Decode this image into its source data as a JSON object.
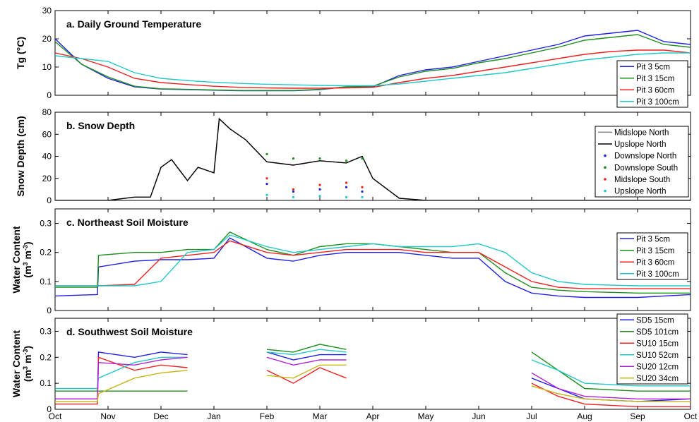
{
  "chart_data": [
    {
      "type": "line",
      "title": "a. Daily Ground Temperature",
      "ylabel": "Tg (°C)",
      "ylim": [
        0,
        30
      ],
      "yticks": [
        "0",
        "10",
        "20",
        "30"
      ],
      "xticks": [
        "Oct",
        "Nov",
        "Dec",
        "Jan",
        "Feb",
        "Mar",
        "Apr",
        "May",
        "Jun",
        "Jul",
        "Aug",
        "Sep",
        "Oct"
      ],
      "legend_position": "bottom-right",
      "x": [
        0,
        0.5,
        1,
        1.5,
        2,
        2.5,
        3,
        3.5,
        4,
        4.5,
        5,
        5.5,
        6,
        6.5,
        7,
        7.5,
        8,
        8.5,
        9,
        9.5,
        10,
        10.5,
        11,
        11.5,
        12
      ],
      "series": [
        {
          "name": "Pit 3 5cm",
          "color": "#1f1fe6",
          "values": [
            20,
            11,
            6,
            3,
            2.2,
            2,
            1.8,
            1.6,
            1.6,
            1.6,
            2,
            3,
            3,
            7,
            9,
            10,
            12,
            14,
            16,
            18,
            21,
            22,
            23,
            19,
            18
          ]
        },
        {
          "name": "Pit 3 15cm",
          "color": "#1e8f1e",
          "values": [
            19,
            11,
            6.5,
            3.2,
            2.3,
            2.1,
            1.9,
            1.7,
            1.7,
            1.7,
            2.1,
            3,
            3.2,
            6.5,
            8.5,
            9.5,
            11.5,
            13,
            15,
            17,
            19.5,
            20.5,
            21.5,
            18,
            17
          ]
        },
        {
          "name": "Pit 3 60cm",
          "color": "#ee2020",
          "values": [
            15,
            13,
            10,
            6,
            4.5,
            3.8,
            3.2,
            2.8,
            2.6,
            2.5,
            2.5,
            2.6,
            2.8,
            4.5,
            6,
            7,
            8.5,
            10,
            11.5,
            13,
            14.5,
            15.5,
            16,
            16,
            15
          ]
        },
        {
          "name": "Pit 3 100cm",
          "color": "#20c8c8",
          "values": [
            14,
            13,
            12,
            8,
            6,
            5.2,
            4.6,
            4.2,
            3.9,
            3.7,
            3.5,
            3.4,
            3.4,
            4,
            5,
            6,
            7,
            8,
            9.5,
            11,
            12.5,
            13.5,
            14.5,
            15,
            15
          ]
        }
      ]
    },
    {
      "type": "line",
      "title": "b. Snow Depth",
      "ylabel": "Snow Depth (cm)",
      "ylim": [
        0,
        80
      ],
      "yticks": [
        "0",
        "20",
        "40",
        "60",
        "80"
      ],
      "xticks": [
        "Oct",
        "Nov",
        "Dec",
        "Jan",
        "Feb",
        "Mar",
        "Apr",
        "May",
        "Jun",
        "Jul",
        "Aug",
        "Sep",
        "Oct"
      ],
      "legend_position": "top-right",
      "x": [
        0,
        1,
        1.5,
        1.8,
        2,
        2.2,
        2.5,
        2.7,
        3,
        3.1,
        3.3,
        3.6,
        4,
        4.5,
        5,
        5.5,
        5.8,
        6,
        6.5,
        7,
        7.5,
        8,
        12
      ],
      "series": [
        {
          "name": "Midslope North",
          "color": "#8c8c8c",
          "values": [
            0,
            0,
            3,
            3,
            30,
            37,
            18,
            30,
            25,
            74,
            65,
            55,
            35,
            32,
            36,
            34,
            40,
            20,
            2,
            0,
            0,
            0,
            0
          ]
        },
        {
          "name": "Upslope North",
          "color": "#000000",
          "values": [
            0,
            0,
            3,
            3,
            30,
            37,
            18,
            30,
            25,
            74,
            65,
            55,
            35,
            32,
            36,
            34,
            40,
            20,
            2,
            0,
            0,
            0,
            0
          ]
        },
        {
          "name": "Downslope North",
          "color": "#1f1fe6",
          "values": [
            null,
            null,
            null,
            null,
            null,
            null,
            null,
            null,
            null,
            null,
            null,
            null,
            15,
            8,
            10,
            12,
            8,
            null,
            null,
            null,
            null,
            null,
            null
          ]
        },
        {
          "name": "Downslope South",
          "color": "#1e8f1e",
          "values": [
            null,
            null,
            null,
            null,
            null,
            null,
            null,
            null,
            null,
            null,
            null,
            null,
            42,
            38,
            38,
            36,
            38,
            null,
            null,
            null,
            null,
            null,
            null
          ]
        },
        {
          "name": "Midslope South",
          "color": "#ee2020",
          "values": [
            null,
            null,
            null,
            null,
            null,
            null,
            null,
            null,
            null,
            null,
            null,
            null,
            20,
            10,
            14,
            16,
            12,
            null,
            null,
            null,
            null,
            null,
            null
          ]
        },
        {
          "name": "Upslope North",
          "color": "#20c8c8",
          "values": [
            null,
            null,
            null,
            null,
            null,
            null,
            null,
            null,
            null,
            null,
            null,
            null,
            5,
            3,
            4,
            3,
            3,
            null,
            null,
            null,
            null,
            null,
            null
          ]
        }
      ]
    },
    {
      "type": "line",
      "title": "c. Northeast Soil Moisture",
      "ylabel": "Water Content",
      "ylabel2_base": "(m",
      "ylabel2_exp1": "3",
      "ylabel2_mid": " m",
      "ylabel2_exp2": "-3",
      "ylabel2_end": ")",
      "ylim": [
        0,
        0.35
      ],
      "yticks": [
        "0",
        "0.1",
        "0.2",
        "0.3"
      ],
      "xticks": [
        "Oct",
        "Nov",
        "Dec",
        "Jan",
        "Feb",
        "Mar",
        "Apr",
        "May",
        "Jun",
        "Jul",
        "Aug",
        "Sep",
        "Oct"
      ],
      "legend_position": "right",
      "x": [
        0,
        0.8,
        0.82,
        1.5,
        2,
        2.5,
        3,
        3.3,
        4,
        4.5,
        5,
        5.5,
        6,
        6.5,
        7,
        7.5,
        8,
        8.5,
        9,
        9.5,
        10,
        11,
        12
      ],
      "series": [
        {
          "name": "Pit 3 5cm",
          "color": "#1f1fe6",
          "values": [
            0.05,
            0.055,
            0.15,
            0.17,
            0.175,
            0.175,
            0.18,
            0.25,
            0.18,
            0.17,
            0.19,
            0.2,
            0.2,
            0.2,
            0.19,
            0.18,
            0.18,
            0.1,
            0.06,
            0.05,
            0.045,
            0.045,
            0.055
          ]
        },
        {
          "name": "Pit 3 15cm",
          "color": "#1e8f1e",
          "values": [
            0.08,
            0.08,
            0.19,
            0.2,
            0.2,
            0.21,
            0.21,
            0.27,
            0.21,
            0.19,
            0.22,
            0.23,
            0.23,
            0.22,
            0.21,
            0.2,
            0.2,
            0.13,
            0.08,
            0.07,
            0.065,
            0.06,
            0.06
          ]
        },
        {
          "name": "Pit 3 60cm",
          "color": "#ee2020",
          "values": [
            0.085,
            0.085,
            0.085,
            0.09,
            0.18,
            0.19,
            0.2,
            0.24,
            0.2,
            0.19,
            0.2,
            0.21,
            0.21,
            0.21,
            0.2,
            0.2,
            0.2,
            0.15,
            0.1,
            0.08,
            0.075,
            0.075,
            0.075
          ]
        },
        {
          "name": "Pit 3 100cm",
          "color": "#20c8c8",
          "values": [
            0.085,
            0.085,
            0.085,
            0.085,
            0.1,
            0.2,
            0.21,
            0.26,
            0.22,
            0.2,
            0.21,
            0.22,
            0.23,
            0.22,
            0.22,
            0.22,
            0.23,
            0.2,
            0.13,
            0.1,
            0.09,
            0.085,
            0.085
          ]
        }
      ]
    },
    {
      "type": "line",
      "title": "d. Southwest Soil Moisture",
      "ylabel": "Water Content",
      "ylabel2_base": "(m",
      "ylabel2_exp1": "3",
      "ylabel2_mid": " m",
      "ylabel2_exp2": "-3",
      "ylabel2_end": ")",
      "ylim": [
        0,
        0.35
      ],
      "yticks": [
        "0",
        "0.1",
        "0.2",
        "0.3"
      ],
      "xticks": [
        "Oct",
        "Nov",
        "Dec",
        "Jan",
        "Feb",
        "Mar",
        "Apr",
        "May",
        "Jun",
        "Jul",
        "Aug",
        "Sep",
        "Oct"
      ],
      "legend_position": "top-right",
      "x": [
        0,
        0.8,
        0.82,
        1.5,
        2,
        2.5,
        3,
        3.5,
        4,
        4.5,
        5,
        5.5,
        6,
        6.5,
        7,
        7.5,
        8,
        8.5,
        9,
        9.5,
        10,
        11,
        12
      ],
      "series": [
        {
          "name": "SD5 15cm",
          "color": "#1f1fe6",
          "values": [
            0.04,
            0.04,
            0.22,
            0.2,
            0.22,
            0.21,
            null,
            null,
            0.22,
            0.19,
            0.21,
            0.21,
            null,
            null,
            null,
            null,
            null,
            null,
            0.12,
            0.08,
            0.04,
            0.03,
            0.04
          ]
        },
        {
          "name": "SD5 101cm",
          "color": "#1e8f1e",
          "values": [
            0.07,
            0.07,
            0.07,
            0.07,
            0.07,
            0.07,
            null,
            null,
            0.23,
            0.22,
            0.25,
            0.23,
            null,
            null,
            null,
            null,
            null,
            null,
            0.22,
            0.15,
            0.08,
            0.07,
            0.07
          ]
        },
        {
          "name": "SU10 15cm",
          "color": "#ee2020",
          "values": [
            0.02,
            0.02,
            0.2,
            0.15,
            0.17,
            0.16,
            null,
            null,
            0.15,
            0.1,
            0.16,
            0.12,
            null,
            null,
            null,
            null,
            null,
            null,
            0.1,
            0.05,
            0.02,
            0.01,
            0.01
          ]
        },
        {
          "name": "SU10 52cm",
          "color": "#20c8c8",
          "values": [
            0.08,
            0.08,
            0.12,
            0.18,
            0.2,
            0.2,
            null,
            null,
            0.22,
            0.21,
            0.23,
            0.22,
            null,
            null,
            null,
            null,
            null,
            null,
            0.19,
            0.15,
            0.1,
            0.09,
            0.09
          ]
        },
        {
          "name": "SU20 12cm",
          "color": "#b021d8",
          "values": [
            0.04,
            0.04,
            0.18,
            0.17,
            0.19,
            0.2,
            null,
            null,
            0.2,
            0.17,
            0.19,
            0.19,
            null,
            null,
            null,
            null,
            null,
            null,
            0.14,
            0.08,
            0.05,
            0.04,
            0.04
          ]
        },
        {
          "name": "SU20 34cm",
          "color": "#c8b418",
          "values": [
            0.03,
            0.03,
            0.06,
            0.12,
            0.14,
            0.15,
            null,
            null,
            0.13,
            0.12,
            0.17,
            0.17,
            null,
            null,
            null,
            null,
            null,
            null,
            0.09,
            0.06,
            0.04,
            0.03,
            0.03
          ]
        }
      ]
    }
  ]
}
